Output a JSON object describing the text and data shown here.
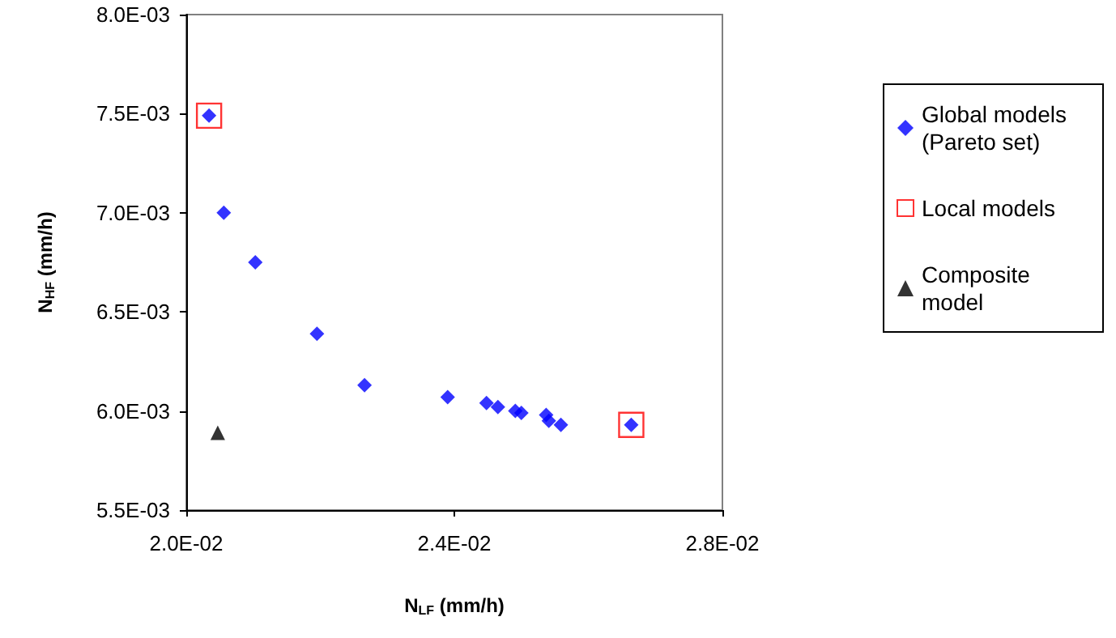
{
  "chart_data": {
    "type": "scatter",
    "xlabel": "N$_{LF}$ (mm/h)",
    "ylabel": "N$_{HF}$ (mm/h)",
    "xlim": [
      0.02,
      0.028
    ],
    "xticks": [
      {
        "value": 0.02,
        "label": "2.0E-02"
      },
      {
        "value": 0.024,
        "label": "2.4E-02"
      },
      {
        "value": 0.028,
        "label": "2.8E-02"
      }
    ],
    "ylim": [
      0.0055,
      0.008
    ],
    "yticks": [
      {
        "value": 0.0055,
        "label": "5.5E-03"
      },
      {
        "value": 0.006,
        "label": "6.0E-03"
      },
      {
        "value": 0.0065,
        "label": "6.5E-03"
      },
      {
        "value": 0.007,
        "label": "7.0E-03"
      },
      {
        "value": 0.0075,
        "label": "7.5E-03"
      },
      {
        "value": 0.008,
        "label": "8.0E-03"
      }
    ],
    "grid": false,
    "legend": "right",
    "series": [
      {
        "name": "Global models (Pareto set)",
        "color": "#0000ff",
        "marker": "diamond",
        "x": [
          0.02034,
          0.02056,
          0.02103,
          0.02195,
          0.02266,
          0.0239,
          0.02448,
          0.02465,
          0.02491,
          0.025,
          0.02537,
          0.02541,
          0.02559,
          0.02664
        ],
        "values": [
          0.00749,
          0.007,
          0.00675,
          0.00639,
          0.00613,
          0.00607,
          0.00604,
          0.00602,
          0.006,
          0.00599,
          0.00598,
          0.00595,
          0.00593,
          0.00593
        ]
      },
      {
        "name": "Local models",
        "color": "#ff0000",
        "marker": "square",
        "x": [
          0.02034,
          0.02664
        ],
        "values": [
          0.00749,
          0.00593
        ]
      },
      {
        "name": "Composite model",
        "color": "#000000",
        "marker": "triangle",
        "x": [
          0.02047
        ],
        "values": [
          0.00589
        ]
      }
    ]
  }
}
